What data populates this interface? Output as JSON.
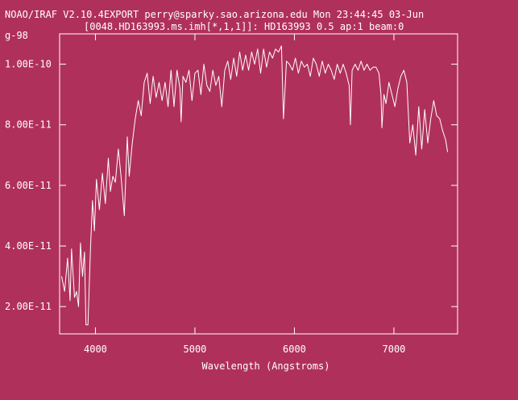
{
  "header": {
    "line1": "NOAO/IRAF V2.10.4EXPORT perry@sparky.sao.arizona.edu Mon 23:44:45 03-Jun",
    "line2": "[0048.HD163993.ms.imh[*,1,1]]: HD163993 0.5 ap:1 beam:0"
  },
  "corner_label": "g-98",
  "colors": {
    "background": "#b0305c",
    "foreground": "#ffffff"
  },
  "chart_data": {
    "type": "line",
    "title": "[0048.HD163993.ms.imh[*,1,1]]: HD163993 0.5 ap:1 beam:0",
    "xlabel": "Wavelength (Angstroms)",
    "ylabel": "",
    "xlim": [
      3640,
      7640
    ],
    "ylim": [
      1.1e-11,
      1.1e-10
    ],
    "x_ticks": [
      4000,
      5000,
      6000,
      7000
    ],
    "x_tick_labels": [
      "4000",
      "5000",
      "6000",
      "7000"
    ],
    "y_ticks": [
      2e-11,
      4e-11,
      6e-11,
      8e-11,
      1e-10
    ],
    "y_tick_labels": [
      "2.00E-11",
      "4.00E-11",
      "6.00E-11",
      "8.00E-11",
      "1.00E-10"
    ],
    "grid": false,
    "series": [
      {
        "x": [
          3660,
          3690,
          3720,
          3745,
          3760,
          3790,
          3810,
          3830,
          3850,
          3870,
          3890,
          3905,
          3925,
          3950,
          3970,
          3990,
          4010,
          4040,
          4070,
          4100,
          4130,
          4150,
          4175,
          4200,
          4230,
          4260,
          4290,
          4320,
          4340,
          4370,
          4400,
          4430,
          4460,
          4490,
          4520,
          4550,
          4580,
          4610,
          4640,
          4670,
          4700,
          4730,
          4760,
          4790,
          4820,
          4850,
          4861,
          4880,
          4910,
          4940,
          4970,
          5000,
          5030,
          5060,
          5090,
          5120,
          5150,
          5180,
          5210,
          5240,
          5270,
          5300,
          5330,
          5360,
          5390,
          5420,
          5450,
          5480,
          5510,
          5540,
          5570,
          5600,
          5630,
          5660,
          5690,
          5720,
          5750,
          5780,
          5810,
          5840,
          5870,
          5890,
          5920,
          5950,
          5980,
          6010,
          6040,
          6070,
          6100,
          6130,
          6160,
          6190,
          6220,
          6250,
          6280,
          6310,
          6340,
          6370,
          6400,
          6430,
          6460,
          6490,
          6520,
          6550,
          6563,
          6580,
          6610,
          6640,
          6670,
          6700,
          6730,
          6760,
          6790,
          6820,
          6850,
          6870,
          6880,
          6900,
          6920,
          6950,
          6980,
          7010,
          7040,
          7070,
          7100,
          7130,
          7160,
          7190,
          7220,
          7250,
          7280,
          7310,
          7340,
          7370,
          7400,
          7430,
          7460,
          7490,
          7520,
          7540
        ],
        "y": [
          3e-11,
          2.5e-11,
          3.6e-11,
          2.2e-11,
          3.9e-11,
          2.3e-11,
          2.5e-11,
          2e-11,
          4.1e-11,
          3e-11,
          3.8e-11,
          1.4e-11,
          1.4e-11,
          3.9e-11,
          5.5e-11,
          4.5e-11,
          6.2e-11,
          5.2e-11,
          6.4e-11,
          5.4e-11,
          6.9e-11,
          5.8e-11,
          6.3e-11,
          6.1e-11,
          7.2e-11,
          6.2e-11,
          5e-11,
          7.6e-11,
          6.3e-11,
          7.4e-11,
          8.2e-11,
          8.8e-11,
          8.3e-11,
          9.4e-11,
          9.7e-11,
          8.7e-11,
          9.6e-11,
          8.9e-11,
          9.4e-11,
          8.8e-11,
          9.4e-11,
          8.6e-11,
          9.8e-11,
          8.6e-11,
          9.8e-11,
          9.2e-11,
          8.1e-11,
          9.6e-11,
          9.4e-11,
          9.8e-11,
          8.8e-11,
          9.7e-11,
          9.8e-11,
          9e-11,
          1e-10,
          9.3e-11,
          9.1e-11,
          9.8e-11,
          9.3e-11,
          9.6e-11,
          8.6e-11,
          9.8e-11,
          1.01e-10,
          9.5e-11,
          1.02e-10,
          9.6e-11,
          1.04e-10,
          9.8e-11,
          1.03e-10,
          9.8e-11,
          1.04e-10,
          1e-10,
          1.05e-10,
          9.7e-11,
          1.05e-10,
          9.9e-11,
          1.04e-10,
          1.02e-10,
          1.05e-10,
          1.04e-10,
          1.06e-10,
          8.2e-11,
          1.01e-10,
          1e-10,
          9.8e-11,
          1.02e-10,
          9.7e-11,
          1.01e-10,
          9.9e-11,
          1e-10,
          9.6e-11,
          1.02e-10,
          1e-10,
          9.6e-11,
          1.01e-10,
          9.7e-11,
          1e-10,
          9.8e-11,
          9.5e-11,
          1e-10,
          9.7e-11,
          1e-10,
          9.7e-11,
          9.3e-11,
          8e-11,
          9.8e-11,
          1e-10,
          9.8e-11,
          1.01e-10,
          9.8e-11,
          1e-10,
          9.8e-11,
          9.9e-11,
          9.9e-11,
          9.7e-11,
          9e-11,
          7.9e-11,
          9e-11,
          8.7e-11,
          9.4e-11,
          9e-11,
          8.6e-11,
          9.2e-11,
          9.6e-11,
          9.8e-11,
          9.4e-11,
          7.4e-11,
          8e-11,
          7e-11,
          8.6e-11,
          7.2e-11,
          8.5e-11,
          7.4e-11,
          8.2e-11,
          8.8e-11,
          8.3e-11,
          8.2e-11,
          7.8e-11,
          7.5e-11,
          7.1e-11
        ]
      }
    ]
  }
}
